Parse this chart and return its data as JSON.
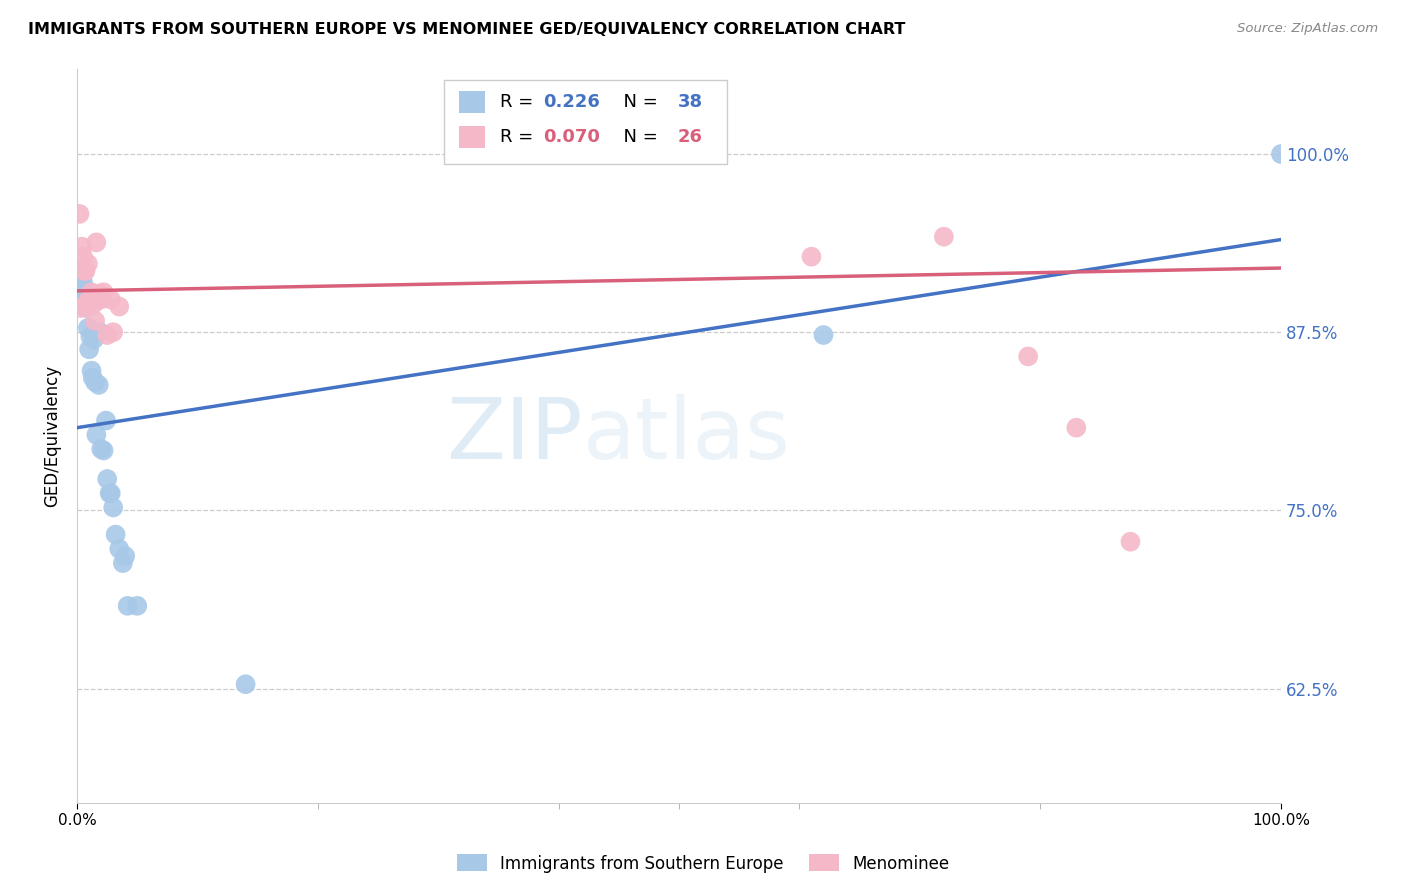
{
  "title": "IMMIGRANTS FROM SOUTHERN EUROPE VS MENOMINEE GED/EQUIVALENCY CORRELATION CHART",
  "source": "Source: ZipAtlas.com",
  "ylabel": "GED/Equivalency",
  "ytick_labels": [
    "62.5%",
    "75.0%",
    "87.5%",
    "100.0%"
  ],
  "ytick_values": [
    0.625,
    0.75,
    0.875,
    1.0
  ],
  "xlim": [
    0.0,
    1.0
  ],
  "ylim": [
    0.545,
    1.06
  ],
  "legend_label1": "Immigrants from Southern Europe",
  "legend_label2": "Menominee",
  "R1": 0.226,
  "N1": 38,
  "R2": 0.07,
  "N2": 26,
  "color1": "#a8c8e8",
  "color2": "#f5b8c8",
  "line_color1": "#4472c4",
  "line_color2": "#d9607a",
  "watermark_zip": "ZIP",
  "watermark_atlas": "atlas",
  "blue_x": [
    0.002,
    0.003,
    0.003,
    0.004,
    0.004,
    0.005,
    0.005,
    0.006,
    0.006,
    0.007,
    0.007,
    0.008,
    0.009,
    0.01,
    0.011,
    0.012,
    0.013,
    0.014,
    0.015,
    0.016,
    0.018,
    0.019,
    0.02,
    0.022,
    0.024,
    0.025,
    0.027,
    0.028,
    0.03,
    0.032,
    0.035,
    0.038,
    0.04,
    0.042,
    0.05,
    0.14,
    0.62,
    1.0
  ],
  "blue_y": [
    0.913,
    0.908,
    0.92,
    0.9,
    0.916,
    0.895,
    0.91,
    0.902,
    0.895,
    0.898,
    0.905,
    0.892,
    0.878,
    0.863,
    0.872,
    0.848,
    0.843,
    0.87,
    0.84,
    0.803,
    0.838,
    0.875,
    0.793,
    0.792,
    0.813,
    0.772,
    0.762,
    0.762,
    0.752,
    0.733,
    0.723,
    0.713,
    0.718,
    0.683,
    0.683,
    0.628,
    0.873,
    1.0
  ],
  "pink_x": [
    0.002,
    0.003,
    0.004,
    0.005,
    0.006,
    0.006,
    0.007,
    0.008,
    0.009,
    0.01,
    0.012,
    0.014,
    0.015,
    0.016,
    0.018,
    0.02,
    0.022,
    0.025,
    0.028,
    0.03,
    0.035,
    0.61,
    0.72,
    0.79,
    0.83,
    0.875
  ],
  "pink_y": [
    0.958,
    0.892,
    0.935,
    0.928,
    0.918,
    0.893,
    0.918,
    0.895,
    0.923,
    0.898,
    0.903,
    0.895,
    0.883,
    0.938,
    0.902,
    0.898,
    0.903,
    0.873,
    0.898,
    0.875,
    0.893,
    0.928,
    0.942,
    0.858,
    0.808,
    0.728
  ],
  "blue_line_x": [
    0.0,
    1.0
  ],
  "blue_line_y": [
    0.808,
    0.94
  ],
  "pink_line_x": [
    0.0,
    1.0
  ],
  "pink_line_y": [
    0.904,
    0.92
  ]
}
